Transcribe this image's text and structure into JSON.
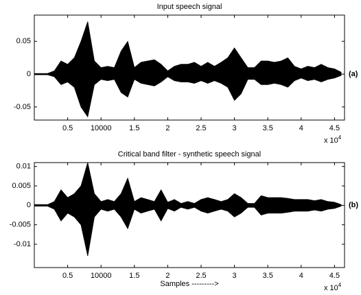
{
  "chart_data": [
    {
      "type": "area",
      "title": "Input speech signal",
      "panel_label": "(a)",
      "x_scale_label": "x 10",
      "x_scale_exponent": "4",
      "x": [
        0,
        1000,
        2000,
        3000,
        4000,
        5000,
        6000,
        7000,
        8000,
        9000,
        10000,
        11000,
        12000,
        13000,
        14000,
        15000,
        16000,
        17000,
        18000,
        19000,
        20000,
        21000,
        22000,
        23000,
        24000,
        25000,
        26000,
        27000,
        28000,
        29000,
        30000,
        31000,
        32000,
        33000,
        34000,
        35000,
        36000,
        37000,
        38000,
        39000,
        40000,
        41000,
        42000,
        43000,
        44000,
        45000,
        46000
      ],
      "series": [
        {
          "color": "#000000",
          "values": [
            0.001,
            0.001,
            0.001,
            0.005,
            0.02,
            0.015,
            0.025,
            0.05,
            0.08,
            0.02,
            0.01,
            0.012,
            0.01,
            0.035,
            0.05,
            0.01,
            0.018,
            0.02,
            0.022,
            0.015,
            0.005,
            0.012,
            0.015,
            0.015,
            0.018,
            0.012,
            0.018,
            0.012,
            0.018,
            0.025,
            0.04,
            0.025,
            0.01,
            0.01,
            0.02,
            0.02,
            0.018,
            0.02,
            0.025,
            0.012,
            0.008,
            0.012,
            0.01,
            0.015,
            0.01,
            0.008,
            0.003
          ]
        },
        {
          "color": "#000000",
          "values": [
            -0.001,
            -0.001,
            -0.001,
            -0.004,
            -0.016,
            -0.012,
            -0.02,
            -0.05,
            -0.065,
            -0.016,
            -0.008,
            -0.01,
            -0.008,
            -0.028,
            -0.035,
            -0.008,
            -0.014,
            -0.016,
            -0.018,
            -0.012,
            -0.004,
            -0.01,
            -0.012,
            -0.012,
            -0.014,
            -0.01,
            -0.014,
            -0.01,
            -0.014,
            -0.02,
            -0.04,
            -0.03,
            -0.008,
            -0.008,
            -0.016,
            -0.016,
            -0.014,
            -0.016,
            -0.02,
            -0.01,
            -0.006,
            -0.01,
            -0.008,
            -0.012,
            -0.008,
            -0.006,
            -0.002
          ]
        }
      ],
      "xlim": [
        0,
        46500
      ],
      "ylim": [
        -0.07,
        0.09
      ],
      "xticks": [
        {
          "value": 5000,
          "label": "0.5"
        },
        10000,
        {
          "value": 15000,
          "label": "1.5"
        },
        {
          "value": 20000,
          "label": "2"
        },
        {
          "value": 25000,
          "label": "2.5"
        },
        {
          "value": 30000,
          "label": "3"
        },
        {
          "value": 35000,
          "label": "3.5"
        },
        {
          "value": 40000,
          "label": "4"
        },
        {
          "value": 45000,
          "label": "4.5"
        }
      ],
      "yticks": [
        -0.05,
        0,
        0.05
      ],
      "box": true
    },
    {
      "type": "area",
      "title": "Critical band filter - synthetic speech signal",
      "panel_label": "(b)",
      "x_label": "Samples --------->",
      "x_scale_label": "x 10",
      "x_scale_exponent": "4",
      "x": [
        0,
        1000,
        2000,
        3000,
        4000,
        5000,
        6000,
        7000,
        8000,
        9000,
        10000,
        11000,
        12000,
        13000,
        14000,
        15000,
        16000,
        17000,
        18000,
        19000,
        20000,
        21000,
        22000,
        23000,
        24000,
        25000,
        26000,
        27000,
        28000,
        29000,
        30000,
        31000,
        32000,
        33000,
        34000,
        35000,
        36000,
        37000,
        38000,
        39000,
        40000,
        41000,
        42000,
        43000,
        44000,
        45000,
        46000
      ],
      "series": [
        {
          "color": "#000000",
          "values": [
            0.0002,
            0.0002,
            0.0002,
            0.001,
            0.004,
            0.002,
            0.003,
            0.005,
            0.011,
            0.003,
            0.001,
            0.0015,
            0.001,
            0.003,
            0.007,
            0.001,
            0.002,
            0.0015,
            0.001,
            0.004,
            0.0008,
            0.0015,
            0.0005,
            0.001,
            0.0005,
            0.0015,
            0.002,
            0.0015,
            0.001,
            0.0015,
            0.003,
            0.002,
            0.0005,
            0.0005,
            0.0025,
            0.002,
            0.002,
            0.002,
            0.0018,
            0.0015,
            0.0015,
            0.0015,
            0.0012,
            0.0015,
            0.001,
            0.0008,
            0.0002
          ]
        },
        {
          "color": "#000000",
          "values": [
            -0.0002,
            -0.0002,
            -0.0002,
            -0.001,
            -0.004,
            -0.002,
            -0.003,
            -0.005,
            -0.013,
            -0.003,
            -0.001,
            -0.0015,
            -0.001,
            -0.003,
            -0.006,
            -0.001,
            -0.002,
            -0.0015,
            -0.001,
            -0.004,
            -0.0008,
            -0.0015,
            -0.0005,
            -0.001,
            -0.0005,
            -0.0015,
            -0.002,
            -0.0015,
            -0.001,
            -0.0015,
            -0.003,
            -0.002,
            -0.0005,
            -0.0005,
            -0.0025,
            -0.002,
            -0.002,
            -0.002,
            -0.0018,
            -0.0015,
            -0.0015,
            -0.0015,
            -0.0012,
            -0.0015,
            -0.001,
            -0.0008,
            -0.0002
          ]
        }
      ],
      "xlim": [
        0,
        46500
      ],
      "ylim": [
        -0.016,
        0.011
      ],
      "xticks": [
        {
          "value": 5000,
          "label": "0.5"
        },
        10000,
        {
          "value": 15000,
          "label": "1.5"
        },
        {
          "value": 20000,
          "label": "2"
        },
        {
          "value": 25000,
          "label": "2.5"
        },
        {
          "value": 30000,
          "label": "3"
        },
        {
          "value": 35000,
          "label": "3.5"
        },
        {
          "value": 40000,
          "label": "4"
        },
        {
          "value": 45000,
          "label": "4.5"
        }
      ],
      "yticks": [
        -0.01,
        -0.005,
        0,
        0.005,
        0.01
      ],
      "box": true
    }
  ]
}
